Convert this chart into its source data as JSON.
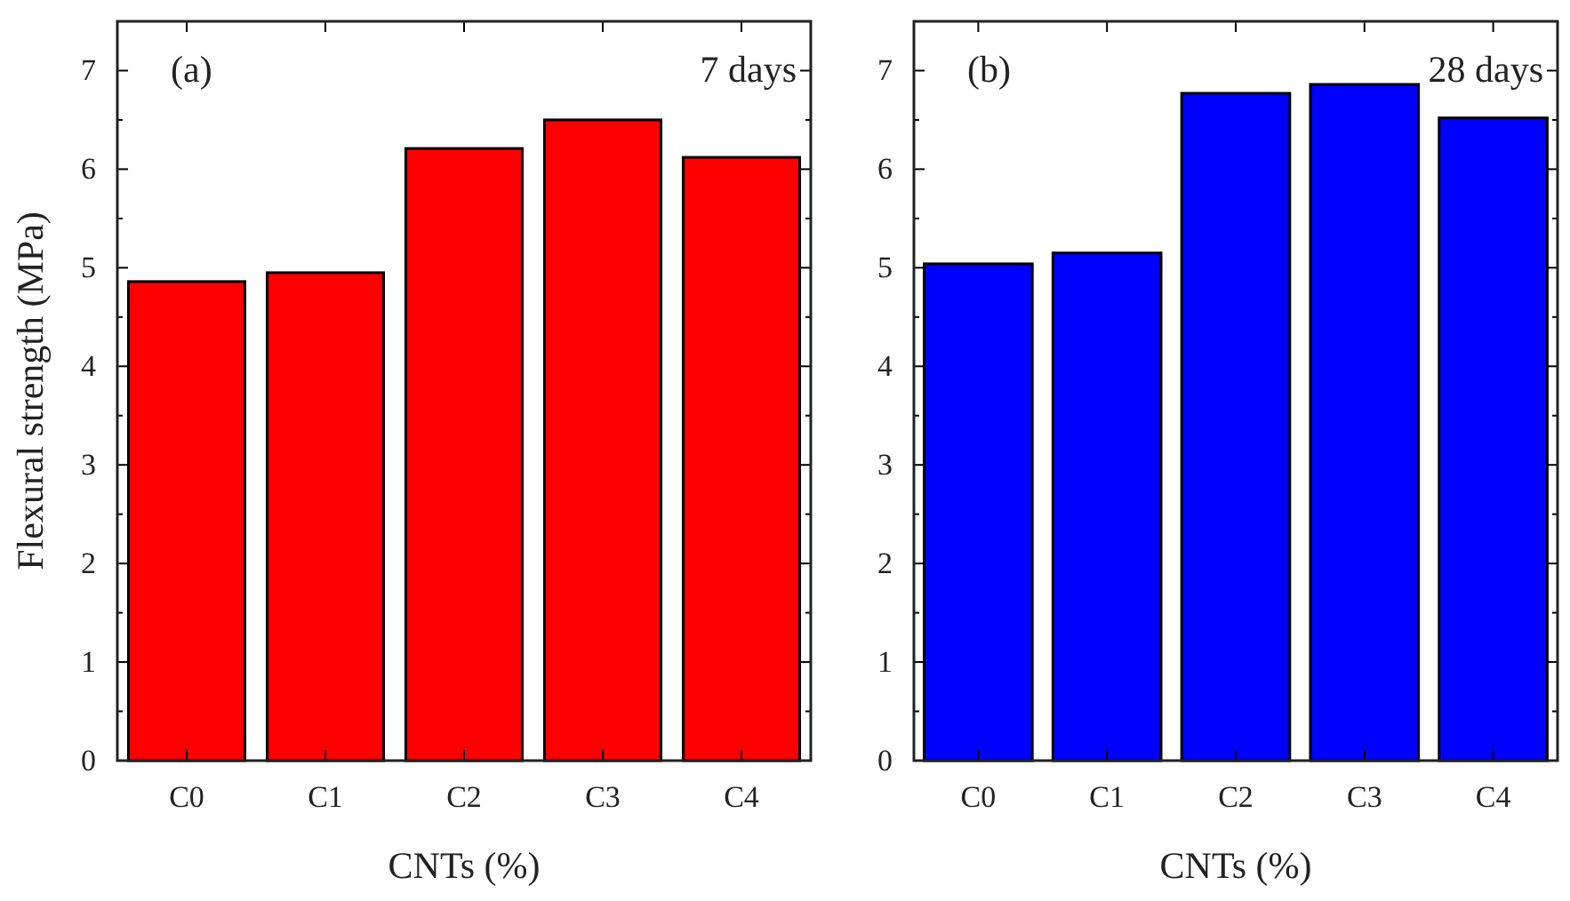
{
  "chart_data": [
    {
      "type": "bar",
      "annotations": [
        "(a)",
        "7 days"
      ],
      "xlabel": "CNTs (%)",
      "ylabel": "Flexural strength (MPa)",
      "categories": [
        "C0",
        "C1",
        "C2",
        "C3",
        "C4"
      ],
      "values": [
        4.86,
        4.95,
        6.21,
        6.5,
        6.12
      ],
      "color": "#ff0000",
      "ylim": [
        0,
        7.5
      ],
      "yticks": [
        0,
        {
          "value": 0.5,
          "label": null
        },
        1,
        {
          "value": 1.5,
          "label": null
        },
        2,
        {
          "value": 2.5,
          "label": null
        },
        3,
        {
          "value": 3.5,
          "label": null
        },
        4,
        {
          "value": 4.5,
          "label": null
        },
        5,
        {
          "value": 5.5,
          "label": null
        },
        6,
        {
          "value": 6.5,
          "label": null
        },
        7
      ],
      "grid": false
    },
    {
      "type": "bar",
      "annotations": [
        "(b)",
        "28 days"
      ],
      "xlabel": "CNTs (%)",
      "categories": [
        "C0",
        "C1",
        "C2",
        "C3",
        "C4"
      ],
      "values": [
        5.04,
        5.15,
        6.77,
        6.86,
        6.52
      ],
      "color": "#0000ff",
      "ylim": [
        0,
        7.5
      ],
      "yticks": [
        0,
        {
          "value": 0.5,
          "label": null
        },
        1,
        {
          "value": 1.5,
          "label": null
        },
        2,
        {
          "value": 2.5,
          "label": null
        },
        3,
        {
          "value": 3.5,
          "label": null
        },
        4,
        {
          "value": 4.5,
          "label": null
        },
        5,
        {
          "value": 5.5,
          "label": null
        },
        6,
        {
          "value": 6.5,
          "label": null
        },
        7
      ],
      "grid": false
    }
  ]
}
